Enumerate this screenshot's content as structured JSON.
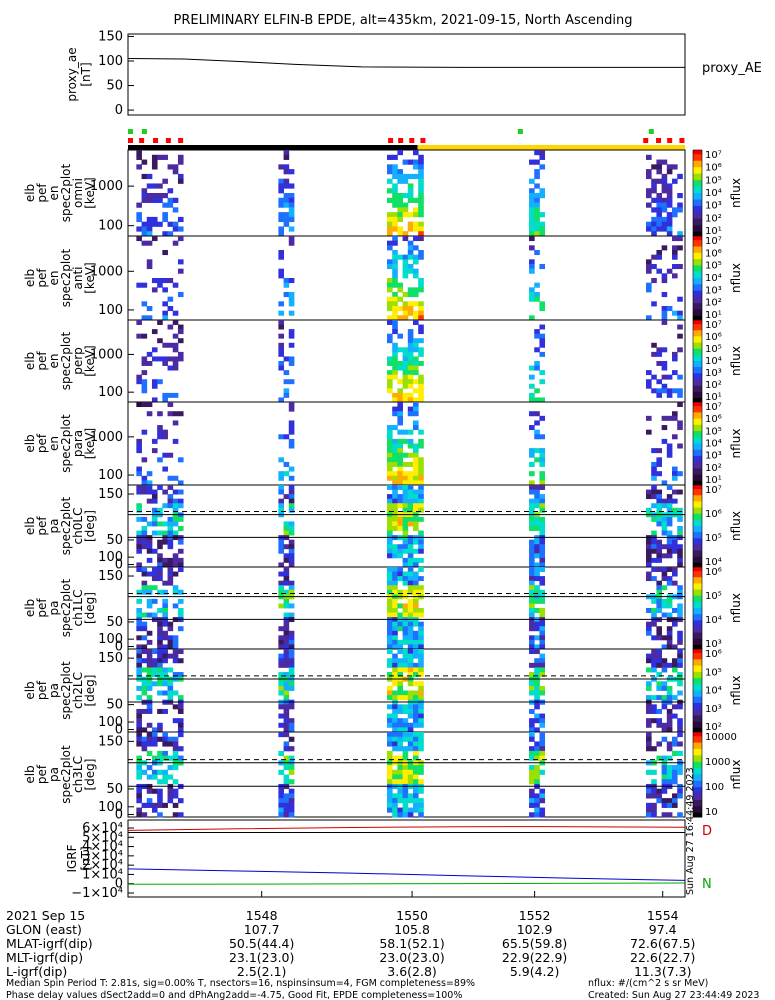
{
  "title": "PRELIMINARY ELFIN-B EPDE, alt=435km, 2021-09-15, North Ascending",
  "colors": {
    "frame": "#000000",
    "sun_bar_night": "#000000",
    "sun_bar_day": "#ffd700",
    "mode_red": "#ff0000",
    "mode_green": "#22cc22",
    "igrf_red": "#cc0000",
    "igrf_black": "#000000",
    "igrf_blue": "#0000cc",
    "igrf_green": "#00aa00"
  },
  "colormap_stops": [
    "#000000",
    "#2a0a3a",
    "#3a1a5e",
    "#4c2aa0",
    "#3030dd",
    "#1e70ff",
    "#12b0ff",
    "#00ddcc",
    "#11e066",
    "#9be000",
    "#ffee00",
    "#ffaa00",
    "#ff3300",
    "#ee0000"
  ],
  "chart_data": [
    {
      "name": "proxy_ae",
      "type": "line",
      "ylabel_lines": [
        "proxy_ae",
        "[nT]"
      ],
      "legend": "proxy_AE",
      "yticks": [
        "150",
        "100",
        "50",
        "0"
      ],
      "ylim": [
        -10,
        155
      ],
      "x": [
        0.0,
        0.1,
        0.2,
        0.3,
        0.42,
        0.6,
        0.8,
        1.0
      ],
      "values": [
        105,
        104,
        99,
        93,
        88,
        87,
        87,
        87
      ]
    },
    {
      "name": "en-omni",
      "type": "heatmap",
      "ylabel_lines": [
        "elb",
        "pef",
        "en",
        "spec2plot",
        "omni",
        "[keV]"
      ],
      "yticks": [
        "1000",
        "100"
      ],
      "colorbar_ticks": [
        "10⁷",
        "10⁶",
        "10⁵",
        "10⁴",
        "10³",
        "10²",
        "10¹"
      ],
      "colorbar_label": "nflux"
    },
    {
      "name": "en-anti",
      "type": "heatmap",
      "ylabel_lines": [
        "elb",
        "pef",
        "en",
        "spec2plot",
        "anti",
        "[keV]"
      ],
      "yticks": [
        "1000",
        "100"
      ],
      "colorbar_ticks": [
        "10⁷",
        "10⁶",
        "10⁵",
        "10⁴",
        "10³",
        "10²",
        "10¹"
      ],
      "colorbar_label": "nflux"
    },
    {
      "name": "en-perp",
      "type": "heatmap",
      "ylabel_lines": [
        "elb",
        "pef",
        "en",
        "spec2plot",
        "perp",
        "[keV]"
      ],
      "yticks": [
        "1000",
        "100"
      ],
      "colorbar_ticks": [
        "10⁷",
        "10⁶",
        "10⁵",
        "10⁴",
        "10³",
        "10²",
        "10¹"
      ],
      "colorbar_label": "nflux"
    },
    {
      "name": "en-para",
      "type": "heatmap",
      "ylabel_lines": [
        "elb",
        "pef",
        "en",
        "spec2plot",
        "para",
        "[keV]"
      ],
      "yticks": [
        "1000",
        "100"
      ],
      "colorbar_ticks": [
        "10⁷",
        "10⁶",
        "10⁵",
        "10⁴",
        "10³",
        "10²",
        "10¹"
      ],
      "colorbar_label": "nflux"
    },
    {
      "name": "pa-ch0",
      "type": "heatmap",
      "ylabel_lines": [
        "elb",
        "pef",
        "pa",
        "spec2plot",
        "ch0LC",
        "[deg]"
      ],
      "yticks": [
        "150",
        "100",
        "50",
        "0"
      ],
      "ylim": [
        0,
        180
      ],
      "lines_deg": {
        "solid": [
          115,
          65
        ],
        "dashed": [
          113
        ]
      },
      "colorbar_ticks": [
        "10⁷",
        "10⁶",
        "10⁵",
        "10⁴"
      ],
      "colorbar_label": "nflux"
    },
    {
      "name": "pa-ch1",
      "type": "heatmap",
      "ylabel_lines": [
        "elb",
        "pef",
        "pa",
        "spec2plot",
        "ch1LC",
        "[deg]"
      ],
      "yticks": [
        "150",
        "100",
        "50",
        "0"
      ],
      "ylim": [
        0,
        180
      ],
      "lines_deg": {
        "solid": [
          115,
          65
        ],
        "dashed": [
          113
        ]
      },
      "colorbar_ticks": [
        "10⁶",
        "10⁵",
        "10⁴",
        "10³"
      ],
      "colorbar_label": "nflux"
    },
    {
      "name": "pa-ch2",
      "type": "heatmap",
      "ylabel_lines": [
        "elb",
        "pef",
        "pa",
        "spec2plot",
        "ch2LC",
        "[deg]"
      ],
      "yticks": [
        "150",
        "100",
        "50",
        "0"
      ],
      "ylim": [
        0,
        180
      ],
      "lines_deg": {
        "solid": [
          115,
          65
        ],
        "dashed": [
          113
        ]
      },
      "colorbar_ticks": [
        "10⁶",
        "10⁵",
        "10⁴",
        "10³",
        "10²"
      ],
      "colorbar_label": "nflux"
    },
    {
      "name": "pa-ch3",
      "type": "heatmap",
      "ylabel_lines": [
        "elb",
        "pef",
        "pa",
        "spec2plot",
        "ch3LC",
        "[deg]"
      ],
      "yticks": [
        "150",
        "100",
        "50",
        "0"
      ],
      "ylim": [
        0,
        180
      ],
      "lines_deg": {
        "solid": [
          115,
          65
        ],
        "dashed": [
          113
        ]
      },
      "colorbar_ticks": [
        "10000",
        "1000",
        "100",
        "10"
      ],
      "colorbar_label": "nflux"
    },
    {
      "name": "igrf",
      "type": "line",
      "ylabel_lines": [
        "IGRF",
        "[nT]"
      ],
      "yticks": [
        "6×10⁴",
        "5×10⁴",
        "4×10⁴",
        "3×10⁴",
        "2×10⁴",
        "1×10⁴",
        "0",
        "−1×10⁴"
      ],
      "ylim": [
        -12000,
        62000
      ],
      "legend_letters": [
        "D",
        "N"
      ],
      "side_stamp": "Sun Aug 27 16:44:49 2023",
      "series": [
        {
          "color": "igrf_red",
          "x": [
            0,
            0.2,
            0.4,
            0.6,
            0.75,
            0.9,
            1.0
          ],
          "values": [
            52000,
            53500,
            54800,
            55600,
            55700,
            55300,
            55000
          ]
        },
        {
          "color": "igrf_black",
          "x": [
            0,
            1.0
          ],
          "values": [
            50000,
            50000
          ]
        },
        {
          "color": "igrf_blue",
          "x": [
            0,
            0.2,
            0.4,
            0.6,
            0.8,
            1.0
          ],
          "values": [
            15000,
            13000,
            11000,
            8500,
            6000,
            4000
          ]
        },
        {
          "color": "igrf_green",
          "x": [
            0,
            0.3,
            0.6,
            1.0
          ],
          "values": [
            200,
            500,
            900,
            1500
          ]
        }
      ]
    }
  ],
  "xaxis": {
    "ticks": [
      "1548",
      "1550",
      "1552",
      "1554"
    ],
    "rows": [
      {
        "label": "2021 Sep 15",
        "values": [
          "",
          "",
          "",
          ""
        ]
      },
      {
        "label": "GLON (east)",
        "values": [
          "107.7",
          "105.8",
          "102.9",
          "97.4"
        ]
      },
      {
        "label": "MLAT-igrf(dip)",
        "values": [
          "50.5(44.4)",
          "58.1(52.1)",
          "65.5(59.8)",
          "72.6(67.5)"
        ]
      },
      {
        "label": "MLT-igrf(dip)",
        "values": [
          "23.1(23.0)",
          "23.0(23.0)",
          "22.9(22.9)",
          "22.6(22.7)"
        ]
      },
      {
        "label": "L-igrf(dip)",
        "values": [
          "2.5(2.1)",
          "3.6(2.8)",
          "5.9(4.2)",
          "11.3(7.3)"
        ]
      }
    ]
  },
  "footer": {
    "line1": "Median Spin Period T: 2.81s, sig=0.00% T, nsectors=16, nspinsinsum=4, FGM completeness=89%",
    "line2": "Phase delay values dSect2add=0 and dPhAng2add=-4.75, Good Fit, EPDE completeness=100%",
    "right1": "nflux: #/(cm^2 s sr MeV)",
    "right2": "Created: Sun Aug 27 23:44:49 2023"
  }
}
